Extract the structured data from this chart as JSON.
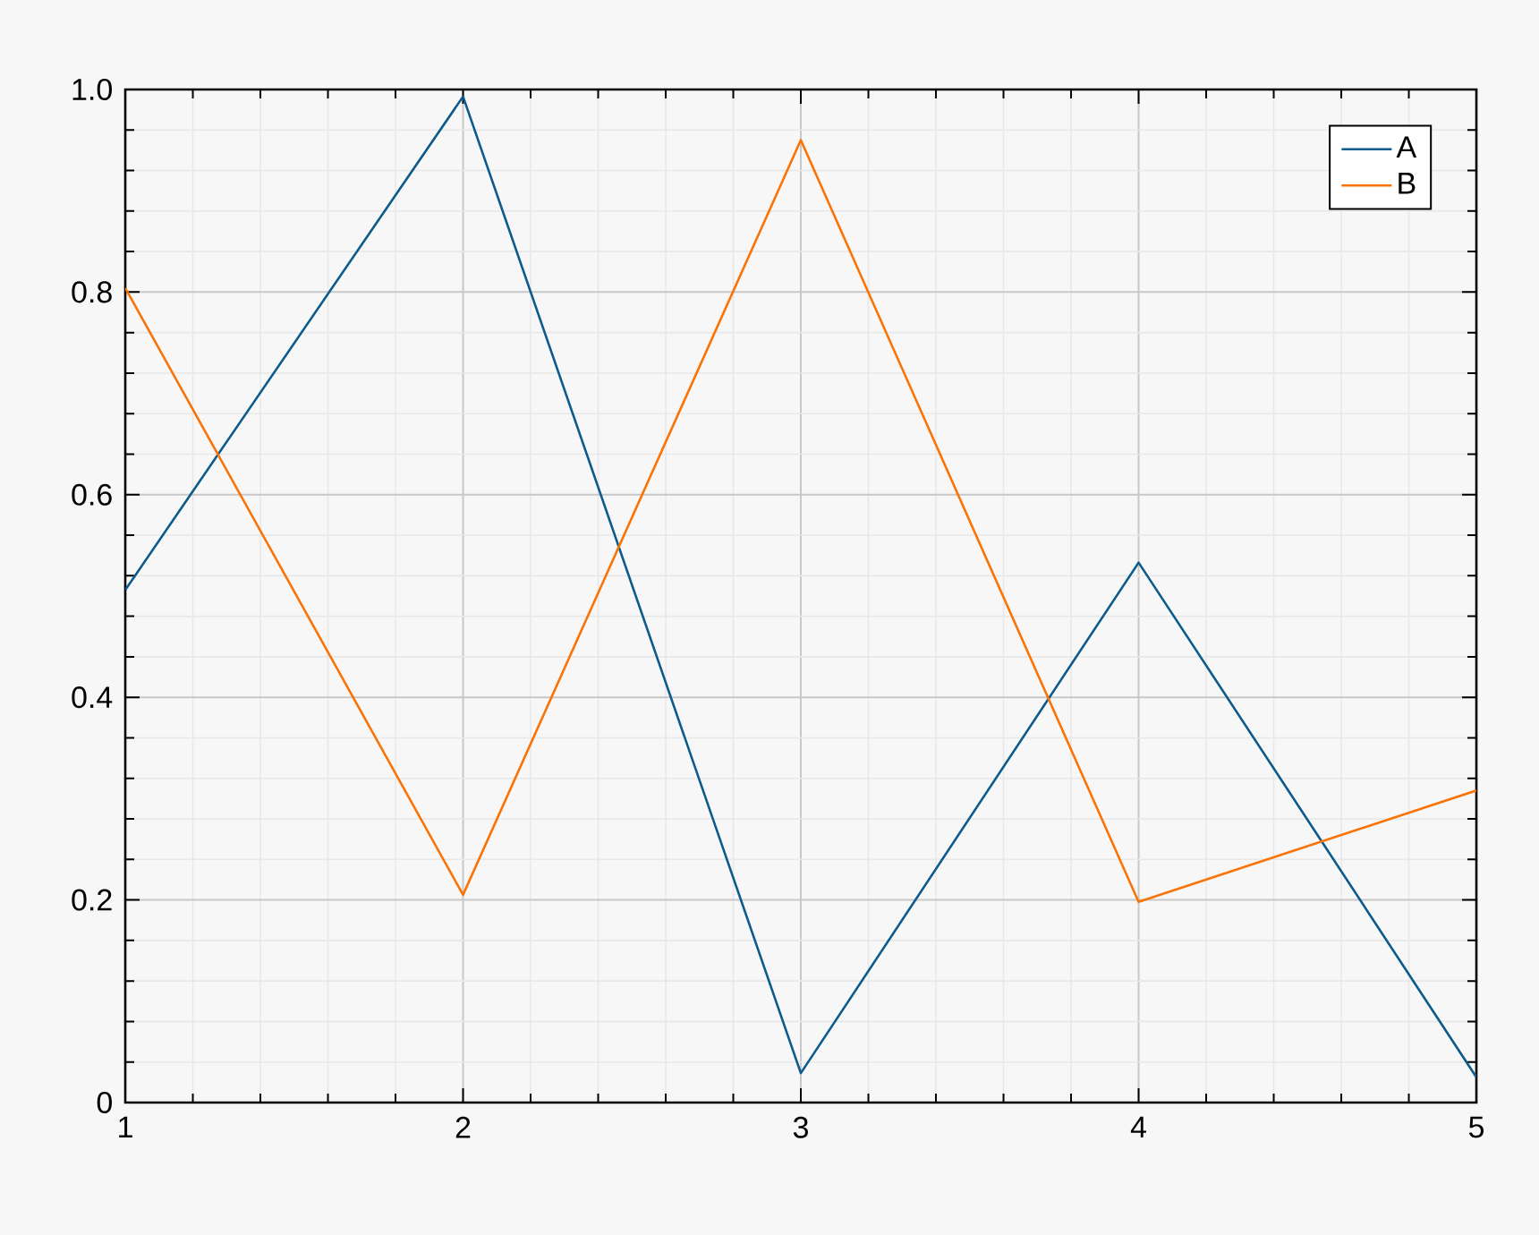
{
  "chart_data": {
    "type": "line",
    "x": [
      1,
      2,
      3,
      4,
      5
    ],
    "series": [
      {
        "name": "A",
        "color": "#0d5a8c",
        "values": [
          0.506,
          0.993,
          0.029,
          0.533,
          0.025
        ]
      },
      {
        "name": "B",
        "color": "#f97306",
        "values": [
          0.804,
          0.205,
          0.95,
          0.198,
          0.308
        ]
      }
    ],
    "xlim": [
      1,
      5
    ],
    "ylim": [
      0,
      1
    ],
    "xticks": [
      1,
      2,
      3,
      4,
      5
    ],
    "yticks": [
      0,
      0.2,
      0.4,
      0.6,
      0.8,
      {
        "value": 1,
        "label": "1.0"
      }
    ],
    "grid": true,
    "legend": "top right",
    "marker": "none",
    "line_style": "solid"
  }
}
